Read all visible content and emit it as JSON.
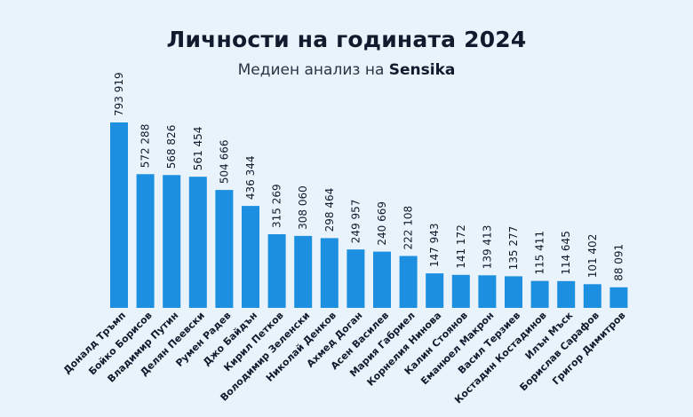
{
  "header": {
    "title": "Личности на годината 2024",
    "subtitle_prefix": "Медиен анализ на ",
    "subtitle_brand": "Sensika"
  },
  "colors": {
    "bar": "#1d8fe0",
    "text": "#121a2e",
    "background": "#e9f3fb"
  },
  "chart_data": {
    "type": "bar",
    "title": "Личности на годината 2024",
    "subtitle": "Медиен анализ на Sensika",
    "categories": [
      "Доналд Тръмп",
      "Бойко Борисов",
      "Владимир Путин",
      "Делян Пеевски",
      "Румен Радев",
      "Джо Байдън",
      "Кирил Петков",
      "Володимир Зеленски",
      "Николай Денков",
      "Ахмед Доган",
      "Асен Василев",
      "Мария Габриел",
      "Корнелия Нинова",
      "Калин Стоянов",
      "Еманюел Макрон",
      "Васил Терзиев",
      "Костадин Костадинов",
      "Илън Мъск",
      "Борислав Сарафов",
      "Григор Димитров"
    ],
    "values": [
      793919,
      572288,
      568826,
      561454,
      504666,
      436344,
      315269,
      308060,
      298464,
      249957,
      240669,
      222108,
      147943,
      141172,
      139413,
      135277,
      115411,
      114645,
      101402,
      88091
    ],
    "value_labels": [
      "793 919",
      "572 288",
      "568 826",
      "561 454",
      "504 666",
      "436 344",
      "315 269",
      "308 060",
      "298 464",
      "249 957",
      "240 669",
      "222 108",
      "147 943",
      "141 172",
      "139 413",
      "135 277",
      "115 411",
      "114 645",
      "101 402",
      "88 091"
    ],
    "xlabel": "",
    "ylabel": "",
    "ylim": [
      0,
      793919
    ],
    "grid": false,
    "legend": "none"
  }
}
